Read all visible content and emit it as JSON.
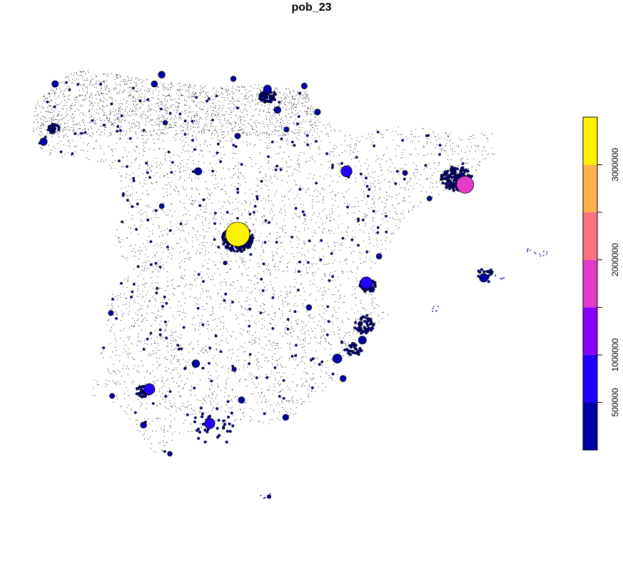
{
  "chart_data": {
    "type": "scatter",
    "title": "pob_23",
    "xlabel": "",
    "ylabel": "",
    "grid": false,
    "legend_placement": "right",
    "legend": {
      "breaks": [
        0,
        500000,
        1000000,
        1500000,
        2000000,
        2500000,
        3000000,
        3400000
      ],
      "colors": [
        "#0000AA",
        "#2200FF",
        "#8800FF",
        "#E43BC8",
        "#FF7080",
        "#FFB24B",
        "#FFF200"
      ],
      "tick_values": [
        500000,
        1000000,
        1500000,
        2000000,
        2500000,
        3000000
      ],
      "tick_labels": [
        "500000",
        "1000000",
        "",
        "2000000",
        "",
        "3000000"
      ]
    },
    "points": [
      {
        "lon": -3.7,
        "lat": 40.42,
        "pop": 3330000
      },
      {
        "lon": 2.17,
        "lat": 41.39,
        "pop": 1650000
      },
      {
        "lon": -0.38,
        "lat": 39.47,
        "pop": 800000
      },
      {
        "lon": -5.98,
        "lat": 37.39,
        "pop": 680000
      },
      {
        "lon": -0.89,
        "lat": 41.65,
        "pop": 680000
      },
      {
        "lon": -4.42,
        "lat": 36.72,
        "pop": 590000
      },
      {
        "lon": -1.13,
        "lat": 37.99,
        "pop": 470000
      },
      {
        "lon": 2.65,
        "lat": 39.57,
        "pop": 420000
      },
      {
        "lon": -2.93,
        "lat": 43.26,
        "pop": 345000
      },
      {
        "lon": -0.48,
        "lat": 38.35,
        "pop": 350000
      },
      {
        "lon": -4.78,
        "lat": 37.89,
        "pop": 320000
      },
      {
        "lon": -4.72,
        "lat": 41.65,
        "pop": 295000
      },
      {
        "lon": -0.98,
        "lat": 37.6,
        "pop": 215000
      },
      {
        "lon": -3.6,
        "lat": 37.18,
        "pop": 230000
      },
      {
        "lon": -5.66,
        "lat": 43.54,
        "pop": 270000
      },
      {
        "lon": -8.71,
        "lat": 42.23,
        "pop": 295000
      },
      {
        "lon": -8.41,
        "lat": 43.36,
        "pop": 245000
      },
      {
        "lon": 2.09,
        "lat": 41.54,
        "pop": 225000
      },
      {
        "lon": -2.67,
        "lat": 42.85,
        "pop": 255000
      },
      {
        "lon": -5.85,
        "lat": 43.36,
        "pop": 220000
      },
      {
        "lon": -1.64,
        "lat": 42.81,
        "pop": 205000
      },
      {
        "lon": -6.97,
        "lat": 38.88,
        "pop": 150000
      },
      {
        "lon": -2.46,
        "lat": 36.84,
        "pop": 200000
      },
      {
        "lon": -3.81,
        "lat": 43.46,
        "pop": 170000
      },
      {
        "lon": -5.66,
        "lat": 40.97,
        "pop": 145000
      },
      {
        "lon": -1.98,
        "lat": 43.32,
        "pop": 190000
      },
      {
        "lon": -6.13,
        "lat": 36.69,
        "pop": 215000
      },
      {
        "lon": -3.79,
        "lat": 37.78,
        "pop": 112000
      },
      {
        "lon": -2.44,
        "lat": 42.47,
        "pop": 152000
      },
      {
        "lon": -1.86,
        "lat": 38.99,
        "pop": 175000
      },
      {
        "lon": -0.05,
        "lat": 39.99,
        "pop": 175000
      },
      {
        "lon": 0.62,
        "lat": 41.62,
        "pop": 140000
      },
      {
        "lon": 1.25,
        "lat": 41.12,
        "pop": 135000
      },
      {
        "lon": -3.7,
        "lat": 42.34,
        "pop": 175000
      },
      {
        "lon": -5.57,
        "lat": 42.6,
        "pop": 120000
      },
      {
        "lon": -6.94,
        "lat": 37.26,
        "pop": 145000
      },
      {
        "lon": -5.45,
        "lat": 36.13,
        "pop": 125000
      },
      {
        "lon": -4.02,
        "lat": 39.86,
        "pop": 85000
      },
      {
        "lon": -2.89,
        "lat": 35.29,
        "pop": 85000
      }
    ]
  }
}
